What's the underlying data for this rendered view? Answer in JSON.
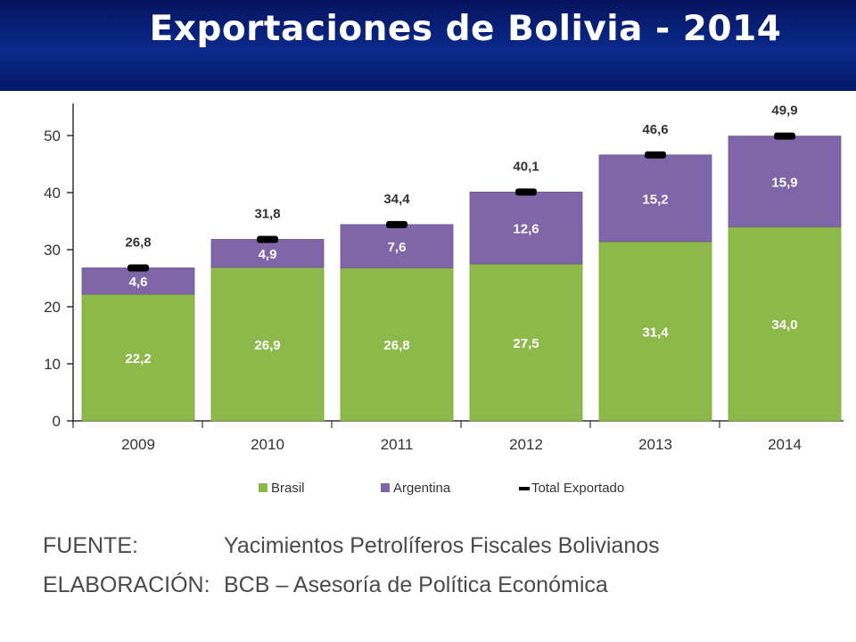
{
  "header": {
    "title": "Exportaciones de Bolivia - 2014"
  },
  "chart_data": {
    "type": "bar",
    "stacked": true,
    "categories": [
      "2009",
      "2010",
      "2011",
      "2012",
      "2013",
      "2014"
    ],
    "series": [
      {
        "name": "Brasil",
        "color": "#8db94b",
        "values": [
          22.2,
          26.9,
          26.8,
          27.5,
          31.4,
          34.0
        ],
        "labels": [
          "22,2",
          "26,9",
          "26,8",
          "27,5",
          "31,4",
          "34,0"
        ]
      },
      {
        "name": "Argentina",
        "color": "#7f66a8",
        "values": [
          4.6,
          4.9,
          7.6,
          12.6,
          15.2,
          15.9
        ],
        "labels": [
          "4,6",
          "4,9",
          "7,6",
          "12,6",
          "15,2",
          "15,9"
        ]
      }
    ],
    "total": {
      "name": "Total Exportado",
      "color": "#000000",
      "values": [
        26.8,
        31.8,
        34.4,
        40.1,
        46.6,
        49.9
      ],
      "labels": [
        "26,8",
        "31,8",
        "34,4",
        "40,1",
        "46,6",
        "49,9"
      ]
    },
    "yticks": [
      0,
      10,
      20,
      30,
      40,
      50
    ],
    "ylim": [
      0,
      55
    ],
    "legend_position": "bottom",
    "grid": false
  },
  "source": {
    "fuente_label": "FUENTE:",
    "fuente_value": "Yacimientos Petrolíferos Fiscales Bolivianos",
    "elaboracion_label": "ELABORACIÓN:",
    "elaboracion_value": "BCB – Asesoría de Política Económica"
  }
}
